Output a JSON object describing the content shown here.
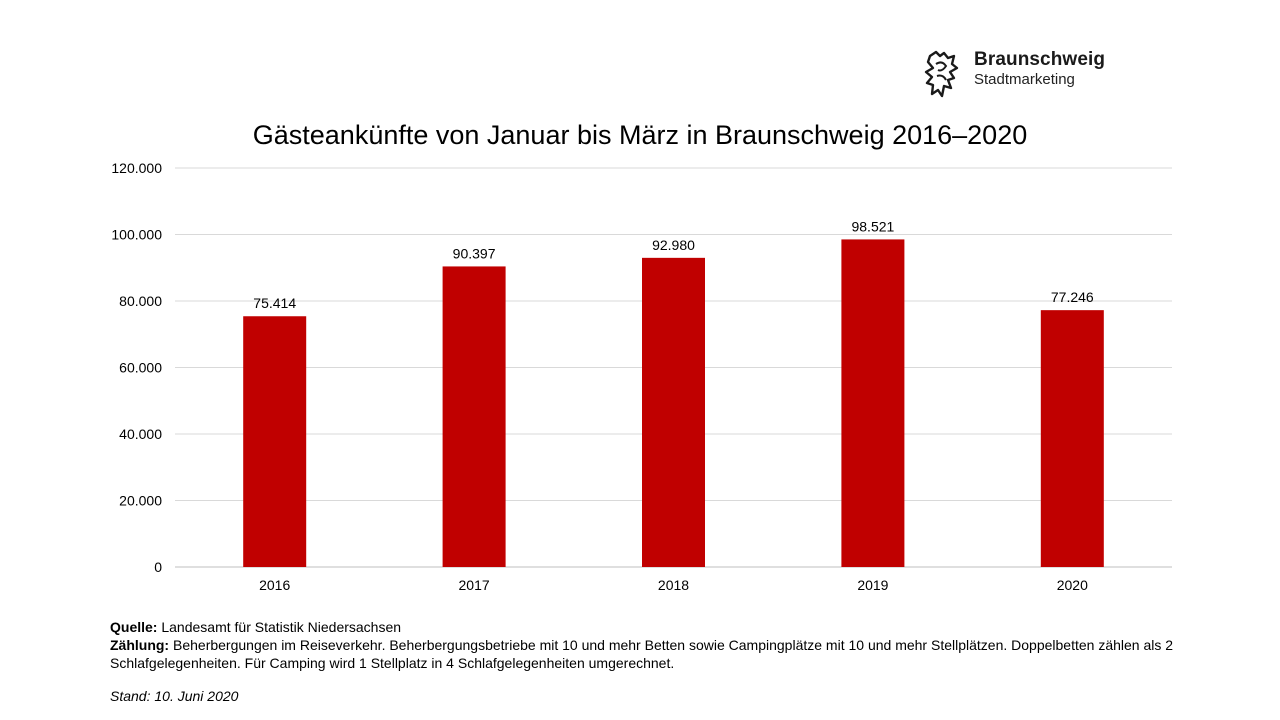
{
  "logo": {
    "name": "Braunschweig",
    "subtitle": "Stadtmarketing"
  },
  "chart_data": {
    "type": "bar",
    "title": "Gästeankünfte von Januar bis März in Braunschweig 2016–2020",
    "categories": [
      "2016",
      "2017",
      "2018",
      "2019",
      "2020"
    ],
    "values": [
      75414,
      90397,
      92980,
      98521,
      77246
    ],
    "value_labels": [
      "75.414",
      "90.397",
      "92.980",
      "98.521",
      "77.246"
    ],
    "ylim": [
      0,
      120000
    ],
    "y_ticks": [
      "0",
      "20.000",
      "40.000",
      "60.000",
      "80.000",
      "100.000",
      "120.000"
    ],
    "xlabel": "",
    "ylabel": "",
    "grid": true,
    "bar_color": "#c00000",
    "grid_color": "#d9d9d9"
  },
  "notes": {
    "source_label": "Quelle:",
    "source_text": " Landesamt für Statistik Niedersachsen",
    "count_label": "Zählung:",
    "count_text": " Beherbergungen im Reiseverkehr. Beherbergungsbetriebe mit 10 und mehr Betten sowie Campingplätze mit 10 und mehr Stellplätzen. Doppelbetten zählen als 2 Schlafgelegenheiten. Für Camping wird 1 Stellplatz in 4 Schlafgelegenheiten umgerechnet.",
    "stand": "Stand: 10. Juni 2020"
  }
}
